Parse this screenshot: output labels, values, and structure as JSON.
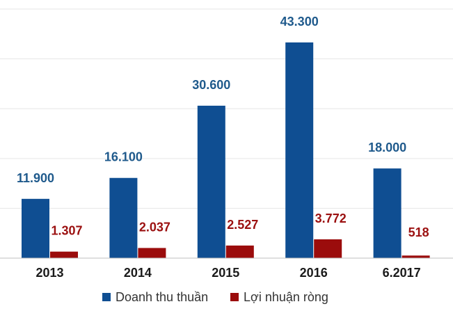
{
  "chart_data": {
    "type": "bar",
    "title": "",
    "xlabel": "",
    "ylabel": "",
    "categories": [
      "2013",
      "2014",
      "2015",
      "2016",
      "6.2017"
    ],
    "series": [
      {
        "name": "Doanh thu thuần",
        "color": "#0f4e92",
        "label_color": "#1f5a8c",
        "values": [
          11900,
          16100,
          30600,
          43300,
          18000
        ],
        "labels": [
          "11.900",
          "16.100",
          "30.600",
          "43.300",
          "18.000"
        ]
      },
      {
        "name": "Lợi nhuận ròng",
        "color": "#9b0c0c",
        "label_color": "#9b1010",
        "values": [
          1307,
          2037,
          2527,
          3772,
          518
        ],
        "labels": [
          "1.307",
          "2.037",
          "2.527",
          "3.772",
          "518"
        ]
      }
    ],
    "ylim": [
      0,
      50000
    ],
    "grid": true,
    "legend_position": "bottom-center"
  }
}
